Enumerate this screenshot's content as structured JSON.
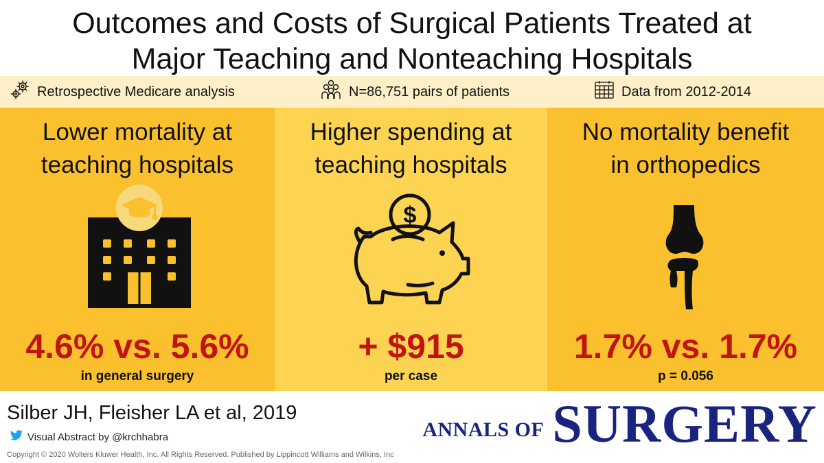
{
  "title": {
    "line1": "Outcomes and Costs of Surgical Patients Treated at",
    "line2": "Major Teaching and Nonteaching Hospitals"
  },
  "info_bar": {
    "study_type": "Retrospective Medicare analysis",
    "sample": "N=86,751 pairs of patients",
    "period": "Data from 2012-2014",
    "icons": [
      "gears-icon",
      "people-group-icon",
      "calendar-icon"
    ]
  },
  "panels": [
    {
      "heading_line1": "Lower mortality at",
      "heading_line2": "teaching hospitals",
      "stat": "4.6% vs. 5.6%",
      "subtext": "in general surgery",
      "icon": "school-building-icon"
    },
    {
      "heading_line1": "Higher spending at",
      "heading_line2": "teaching hospitals",
      "stat": "+ $915",
      "subtext": "per case",
      "icon": "piggy-bank-icon"
    },
    {
      "heading_line1": "No mortality benefit",
      "heading_line2": "in orthopedics",
      "stat": "1.7% vs. 1.7%",
      "subtext": "p = 0.056",
      "icon": "knee-joint-icon"
    }
  ],
  "footer": {
    "citation": "Silber JH, Fleisher LA et al, 2019",
    "credit": "Visual Abstract by @krchhabra",
    "copyright": "Copyright © 2020 Wolters Kluwer Health, Inc. All Rights Reserved. Published by Lippincott Williams and Wilkins, Inc",
    "journal_prefix": "ANNALS OF",
    "journal_name": "SURGERY"
  },
  "colors": {
    "panel_dark": "#fbc02d",
    "panel_light": "#fdd352",
    "info_bar": "#fdf0c8",
    "stat_red": "#c0140f",
    "journal_blue": "#1a237e",
    "twitter_blue": "#1da1f2"
  }
}
